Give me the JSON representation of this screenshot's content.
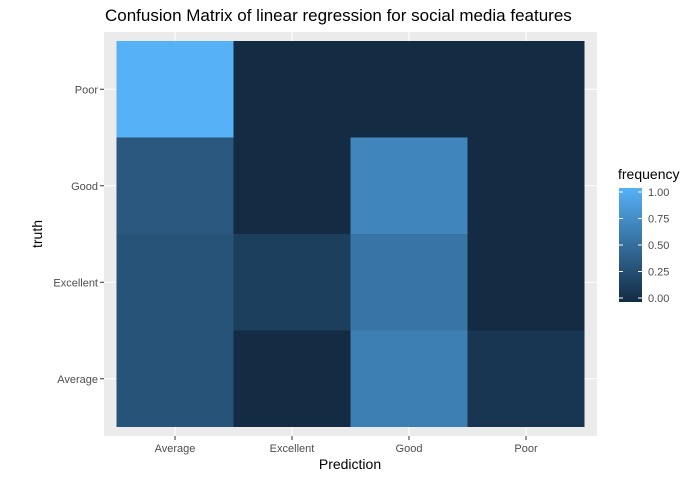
{
  "chart_data": {
    "type": "heatmap",
    "title": "Confusion Matrix of  linear regression for social media features",
    "xlabel": "Prediction",
    "ylabel": "truth",
    "x_categories": [
      "Average",
      "Excellent",
      "Good",
      "Poor"
    ],
    "y_categories": [
      "Average",
      "Excellent",
      "Good",
      "Poor"
    ],
    "cells": [
      {
        "x": "Average",
        "y": "Poor",
        "value": 1.0
      },
      {
        "x": "Excellent",
        "y": "Poor",
        "value": 0.0
      },
      {
        "x": "Good",
        "y": "Poor",
        "value": 0.0
      },
      {
        "x": "Poor",
        "y": "Poor",
        "value": 0.0
      },
      {
        "x": "Average",
        "y": "Good",
        "value": 0.33
      },
      {
        "x": "Excellent",
        "y": "Good",
        "value": 0.0
      },
      {
        "x": "Good",
        "y": "Good",
        "value": 0.67
      },
      {
        "x": "Poor",
        "y": "Good",
        "value": 0.0
      },
      {
        "x": "Average",
        "y": "Excellent",
        "value": 0.3
      },
      {
        "x": "Excellent",
        "y": "Excellent",
        "value": 0.15
      },
      {
        "x": "Good",
        "y": "Excellent",
        "value": 0.55
      },
      {
        "x": "Poor",
        "y": "Excellent",
        "value": 0.0
      },
      {
        "x": "Average",
        "y": "Average",
        "value": 0.3
      },
      {
        "x": "Excellent",
        "y": "Average",
        "value": 0.0
      },
      {
        "x": "Good",
        "y": "Average",
        "value": 0.62
      },
      {
        "x": "Poor",
        "y": "Average",
        "value": 0.08
      }
    ],
    "legend": {
      "title": "frequency",
      "ticks": [
        "0.00",
        "0.25",
        "0.50",
        "0.75",
        "1.00"
      ],
      "range": [
        0,
        1
      ],
      "low_color": "#132B43",
      "high_color": "#56B1F7",
      "placement": "right"
    },
    "grid": true,
    "panel_background": "#EBEBEB"
  }
}
